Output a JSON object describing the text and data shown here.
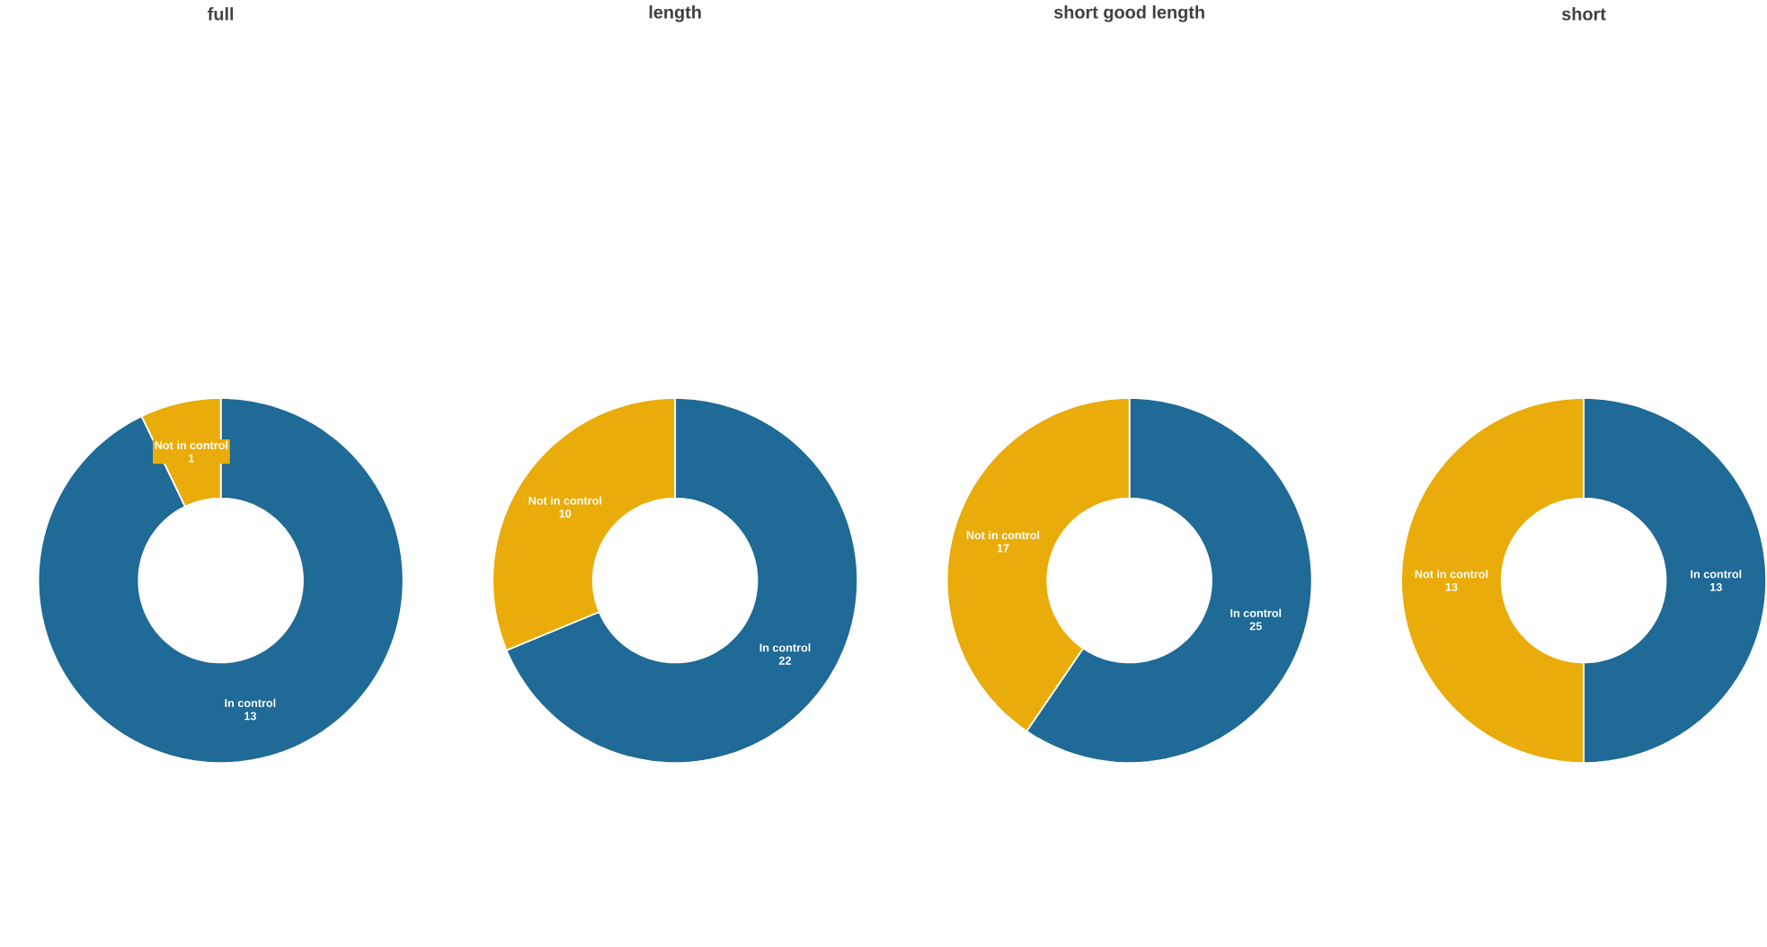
{
  "chart_data": [
    {
      "type": "donut",
      "title": "full",
      "categories": [
        "In control",
        "Not in control"
      ],
      "values": [
        13,
        1
      ],
      "colors": [
        "#1f6a96",
        "#e9ac0a"
      ],
      "data_labels": true
    },
    {
      "type": "donut",
      "title": "length",
      "categories": [
        "In control",
        "Not in control"
      ],
      "values": [
        22,
        10
      ],
      "colors": [
        "#1f6a96",
        "#e9ac0a"
      ],
      "data_labels": true
    },
    {
      "type": "donut",
      "title": "short good length",
      "categories": [
        "In control",
        "Not in control"
      ],
      "values": [
        25,
        17
      ],
      "colors": [
        "#1f6a96",
        "#e9ac0a"
      ],
      "data_labels": true
    },
    {
      "type": "donut",
      "title": "short",
      "categories": [
        "In control",
        "Not in control"
      ],
      "values": [
        13,
        13
      ],
      "colors": [
        "#1f6a96",
        "#e9ac0a"
      ],
      "data_labels": true
    }
  ]
}
